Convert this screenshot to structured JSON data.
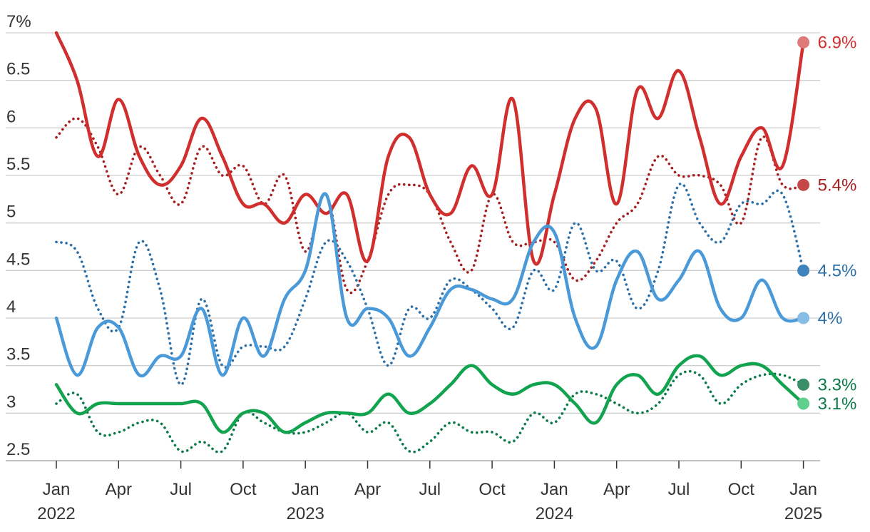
{
  "chart_data": {
    "type": "line",
    "title": "",
    "xlabel": "",
    "ylabel": "",
    "ylim": [
      2.5,
      7
    ],
    "y_ticks": [
      {
        "value": 7,
        "label": "7%"
      },
      {
        "value": 6.5,
        "label": "6.5"
      },
      {
        "value": 6,
        "label": "6"
      },
      {
        "value": 5.5,
        "label": "5.5"
      },
      {
        "value": 5,
        "label": "5"
      },
      {
        "value": 4.5,
        "label": "4.5"
      },
      {
        "value": 4,
        "label": "4"
      },
      {
        "value": 3.5,
        "label": "3.5"
      },
      {
        "value": 3,
        "label": "3"
      },
      {
        "value": 2.5,
        "label": "2.5"
      }
    ],
    "x_ticks": [
      {
        "month": "2022-01",
        "label": "Jan",
        "year": "2022"
      },
      {
        "month": "2022-04",
        "label": "Apr",
        "year": ""
      },
      {
        "month": "2022-07",
        "label": "Jul",
        "year": ""
      },
      {
        "month": "2022-10",
        "label": "Oct",
        "year": ""
      },
      {
        "month": "2023-01",
        "label": "Jan",
        "year": "2023"
      },
      {
        "month": "2023-04",
        "label": "Apr",
        "year": ""
      },
      {
        "month": "2023-07",
        "label": "Jul",
        "year": ""
      },
      {
        "month": "2023-10",
        "label": "Oct",
        "year": ""
      },
      {
        "month": "2024-01",
        "label": "Jan",
        "year": "2024"
      },
      {
        "month": "2024-04",
        "label": "Apr",
        "year": ""
      },
      {
        "month": "2024-07",
        "label": "Jul",
        "year": ""
      },
      {
        "month": "2024-10",
        "label": "Oct",
        "year": ""
      },
      {
        "month": "2025-01",
        "label": "Jan",
        "year": "2025"
      }
    ],
    "x": [
      "2022-01",
      "2022-02",
      "2022-03",
      "2022-04",
      "2022-05",
      "2022-06",
      "2022-07",
      "2022-08",
      "2022-09",
      "2022-10",
      "2022-11",
      "2022-12",
      "2023-01",
      "2023-02",
      "2023-03",
      "2023-04",
      "2023-05",
      "2023-06",
      "2023-07",
      "2023-08",
      "2023-09",
      "2023-10",
      "2023-11",
      "2023-12",
      "2024-01",
      "2024-02",
      "2024-03",
      "2024-04",
      "2024-05",
      "2024-06",
      "2024-07",
      "2024-08",
      "2024-09",
      "2024-10",
      "2024-11",
      "2024-12",
      "2025-01"
    ],
    "grid": true,
    "legend": "none",
    "series": [
      {
        "color": "#d12e2e",
        "style": "solid",
        "end_label": "6.9%",
        "end_label_color": "#d12e2e",
        "end_value": 6.9,
        "end_marker_color": "#e07a7a",
        "values": [
          7.0,
          6.5,
          5.7,
          6.3,
          5.7,
          5.4,
          5.6,
          6.1,
          5.7,
          5.2,
          5.2,
          5.0,
          5.3,
          5.1,
          5.3,
          4.6,
          5.7,
          5.9,
          5.3,
          5.1,
          5.6,
          5.3,
          6.3,
          4.6,
          5.3,
          6.1,
          6.2,
          5.2,
          6.4,
          6.1,
          6.6,
          5.9,
          5.2,
          5.7,
          6.0,
          5.6,
          6.9
        ]
      },
      {
        "color": "#a61e1e",
        "style": "dotted",
        "end_label": "5.4%",
        "end_label_color": "#a61e1e",
        "end_value": 5.4,
        "end_marker_color": "#c54848",
        "values": [
          5.9,
          6.1,
          5.8,
          5.3,
          5.8,
          5.5,
          5.2,
          5.8,
          5.5,
          5.6,
          5.2,
          5.5,
          4.7,
          5.3,
          4.3,
          4.6,
          5.3,
          5.4,
          5.3,
          4.8,
          4.5,
          5.3,
          4.8,
          4.8,
          4.8,
          4.4,
          4.6,
          5.0,
          5.2,
          5.7,
          5.5,
          5.5,
          5.4,
          5.0,
          5.9,
          5.4,
          5.4
        ]
      },
      {
        "color": "#2b6fa8",
        "style": "dotted",
        "end_label": "4.5%",
        "end_label_color": "#2b6fa8",
        "end_value": 4.5,
        "end_marker_color": "#3f83bc",
        "values": [
          4.8,
          4.7,
          4.1,
          3.9,
          4.8,
          4.3,
          3.3,
          4.2,
          3.5,
          3.7,
          3.7,
          3.7,
          4.2,
          4.8,
          4.6,
          4.1,
          3.5,
          4.1,
          4.0,
          4.4,
          4.3,
          4.1,
          3.9,
          4.5,
          4.3,
          5.0,
          4.5,
          4.6,
          4.1,
          4.5,
          5.4,
          5.0,
          4.8,
          5.2,
          5.2,
          5.3,
          4.5
        ]
      },
      {
        "color": "#4a9ad9",
        "style": "solid",
        "end_label": "4%",
        "end_label_color": "#2b6fa8",
        "end_value": 4.0,
        "end_marker_color": "#85bde6",
        "values": [
          4.0,
          3.4,
          3.9,
          3.9,
          3.4,
          3.6,
          3.6,
          4.1,
          3.4,
          4.0,
          3.6,
          4.2,
          4.5,
          5.3,
          4.0,
          4.1,
          4.0,
          3.6,
          3.9,
          4.3,
          4.3,
          4.2,
          4.2,
          4.8,
          4.9,
          4.0,
          3.7,
          4.4,
          4.7,
          4.2,
          4.4,
          4.7,
          4.1,
          4.0,
          4.4,
          4.0,
          4.0
        ]
      },
      {
        "color": "#0b7a48",
        "style": "dotted",
        "end_label": "3.3%",
        "end_label_color": "#0b7a48",
        "end_value": 3.3,
        "end_marker_color": "#3a8e68",
        "values": [
          3.1,
          3.2,
          2.8,
          2.8,
          2.9,
          2.9,
          2.6,
          2.7,
          2.6,
          3.0,
          2.9,
          2.8,
          2.8,
          2.9,
          3.0,
          2.8,
          2.9,
          2.6,
          2.7,
          2.9,
          2.8,
          2.8,
          2.7,
          3.0,
          2.9,
          3.2,
          3.2,
          3.1,
          3.0,
          3.1,
          3.4,
          3.4,
          3.1,
          3.3,
          3.4,
          3.4,
          3.3
        ]
      },
      {
        "color": "#11a34e",
        "style": "solid",
        "end_label": "3.1%",
        "end_label_color": "#0b7a48",
        "end_value": 3.1,
        "end_marker_color": "#5fcf8d",
        "values": [
          3.3,
          3.0,
          3.1,
          3.1,
          3.1,
          3.1,
          3.1,
          3.1,
          2.8,
          3.0,
          3.0,
          2.8,
          2.9,
          3.0,
          3.0,
          3.0,
          3.2,
          3.0,
          3.1,
          3.3,
          3.5,
          3.3,
          3.2,
          3.3,
          3.3,
          3.1,
          2.9,
          3.3,
          3.4,
          3.2,
          3.5,
          3.6,
          3.4,
          3.5,
          3.5,
          3.3,
          3.1
        ]
      }
    ]
  }
}
